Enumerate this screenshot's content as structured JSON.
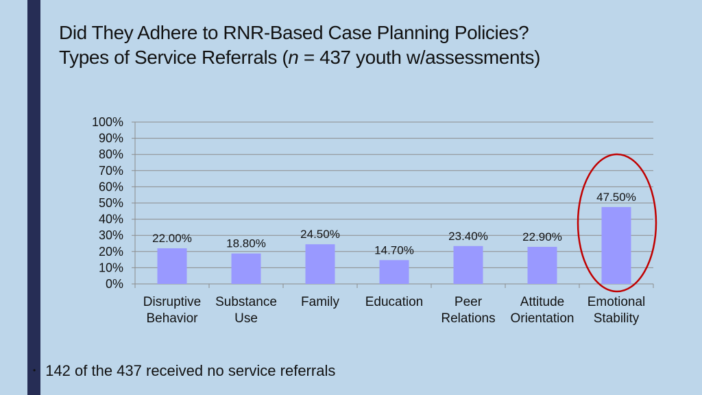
{
  "slide": {
    "title_line1": "Did They Adhere to RNR-Based Case Planning Policies?",
    "title_line2_prefix": "Types of Service Referrals (",
    "title_line2_n": "n",
    "title_line2_suffix": " = 437 youth w/assessments)",
    "bullet": "142 of the 437 received no service referrals"
  },
  "chart_data": {
    "type": "bar",
    "categories": [
      [
        "Disruptive",
        "Behavior"
      ],
      [
        "Substance",
        "Use"
      ],
      [
        "Family"
      ],
      [
        "Education"
      ],
      [
        "Peer",
        "Relations"
      ],
      [
        "Attitude",
        "Orientation"
      ],
      [
        "Emotional",
        "Stability"
      ]
    ],
    "values": [
      22.0,
      18.8,
      24.5,
      14.7,
      23.4,
      22.9,
      47.5
    ],
    "value_labels": [
      "22.00%",
      "18.80%",
      "24.50%",
      "14.70%",
      "23.40%",
      "22.90%",
      "47.50%"
    ],
    "y_ticks": [
      "0%",
      "10%",
      "20%",
      "30%",
      "40%",
      "50%",
      "60%",
      "70%",
      "80%",
      "90%",
      "100%"
    ],
    "ylim": [
      0,
      100
    ],
    "grid": true,
    "highlight_index": 6,
    "colors": {
      "bar": "#9999ff",
      "grid": "#8c8c8c",
      "highlight_circle": "#c00000"
    }
  }
}
